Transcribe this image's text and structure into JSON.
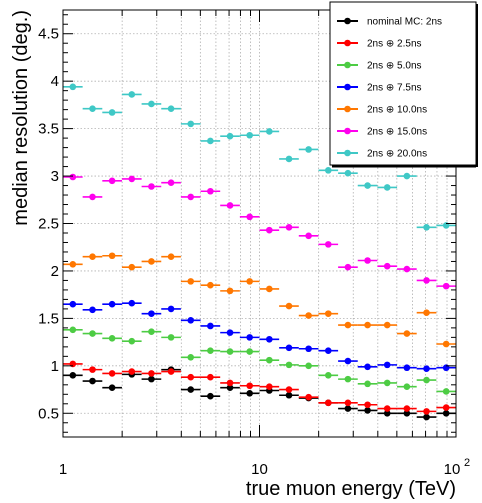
{
  "chart_data": {
    "type": "scatter",
    "title": "",
    "xlabel": "true muon energy (TeV)",
    "ylabel": "median resolution (deg.)",
    "x_scale": "log",
    "xlim": [
      1,
      100
    ],
    "ylim": [
      0.25,
      4.75
    ],
    "grid": true,
    "legend_position": "top-right",
    "x_tick_labels": [
      {
        "value": 1,
        "label": "1"
      },
      {
        "value": 10,
        "label": "10"
      },
      {
        "value": 100,
        "label": "10",
        "exponent": "2"
      }
    ],
    "y_tick_labels": [
      {
        "value": 0.5,
        "label": "0.5"
      },
      {
        "value": 1,
        "label": "1"
      },
      {
        "value": 1.5,
        "label": "1.5"
      },
      {
        "value": 2,
        "label": "2"
      },
      {
        "value": 2.5,
        "label": "2.5"
      },
      {
        "value": 3,
        "label": "3"
      },
      {
        "value": 3.5,
        "label": "3.5"
      },
      {
        "value": 4,
        "label": "4"
      },
      {
        "value": 4.5,
        "label": "4.5"
      }
    ],
    "x_bin_edges": [
      1,
      1.2589,
      1.5849,
      1.9953,
      2.5119,
      3.1623,
      3.9811,
      5.0119,
      6.3096,
      7.9433,
      10,
      12.589,
      15.849,
      19.953,
      25.119,
      31.623,
      39.811,
      50.119,
      63.096,
      79.433,
      100
    ],
    "x": [
      1.122,
      1.413,
      1.778,
      2.239,
      2.818,
      3.548,
      4.467,
      5.623,
      7.079,
      8.913,
      11.22,
      14.13,
      17.78,
      22.39,
      28.18,
      35.48,
      44.67,
      56.23,
      70.79,
      89.13
    ],
    "series": [
      {
        "name": "nominal MC: 2ns",
        "color": "#000000",
        "values": [
          0.9,
          0.84,
          0.77,
          0.91,
          0.86,
          0.96,
          0.75,
          0.68,
          0.77,
          0.71,
          0.74,
          0.69,
          0.66,
          0.61,
          0.55,
          0.53,
          0.5,
          0.5,
          0.46,
          0.5
        ]
      },
      {
        "name": "2ns ⊕ 2.5ns",
        "color": "#ff0000",
        "values": [
          1.02,
          0.96,
          0.92,
          0.94,
          0.92,
          0.94,
          0.88,
          0.88,
          0.82,
          0.79,
          0.78,
          0.75,
          0.67,
          0.61,
          0.61,
          0.59,
          0.55,
          0.55,
          0.52,
          0.56
        ]
      },
      {
        "name": "2ns ⊕ 5.0ns",
        "color": "#4dcc44",
        "values": [
          1.38,
          1.34,
          1.29,
          1.26,
          1.36,
          1.3,
          1.09,
          1.16,
          1.15,
          1.15,
          1.06,
          1.01,
          1.0,
          0.9,
          0.86,
          0.81,
          0.82,
          0.78,
          0.85,
          0.73
        ]
      },
      {
        "name": "2ns ⊕ 7.5ns",
        "color": "#0000ff",
        "values": [
          1.65,
          1.59,
          1.65,
          1.66,
          1.55,
          1.6,
          1.48,
          1.42,
          1.35,
          1.3,
          1.28,
          1.19,
          1.18,
          1.16,
          1.05,
          0.99,
          1.01,
          0.98,
          0.97,
          0.98
        ]
      },
      {
        "name": "2ns ⊕ 10.0ns",
        "color": "#ff7700",
        "values": [
          2.07,
          2.15,
          2.16,
          2.04,
          2.1,
          2.15,
          1.89,
          1.85,
          1.79,
          1.89,
          1.81,
          1.63,
          1.53,
          1.55,
          1.43,
          1.43,
          1.43,
          1.34,
          1.56,
          1.23
        ]
      },
      {
        "name": "2ns ⊕ 15.0ns",
        "color": "#ff00ee",
        "values": [
          2.99,
          2.78,
          2.95,
          2.97,
          2.89,
          2.93,
          2.78,
          2.84,
          2.69,
          2.57,
          2.43,
          2.46,
          2.37,
          2.28,
          2.04,
          2.11,
          2.05,
          2.02,
          1.9,
          1.84
        ]
      },
      {
        "name": "2ns ⊕ 20.0ns",
        "color": "#3fc8c6",
        "values": [
          3.94,
          3.71,
          3.67,
          3.86,
          3.76,
          3.71,
          3.55,
          3.37,
          3.42,
          3.43,
          3.47,
          3.18,
          3.28,
          3.06,
          3.03,
          2.9,
          2.88,
          3.0,
          2.46,
          2.48
        ]
      }
    ]
  }
}
